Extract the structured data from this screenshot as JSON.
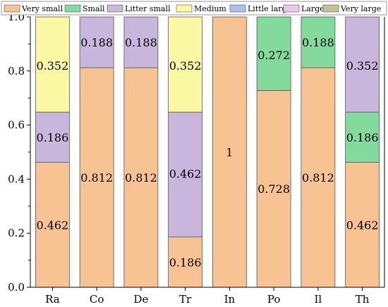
{
  "chart_data": {
    "type": "bar",
    "stacked": true,
    "categories": [
      "Ra",
      "Co",
      "De",
      "Tr",
      "In",
      "Po",
      "Il",
      "Th"
    ],
    "series": [
      {
        "name": "Very small",
        "color": "#f8c392",
        "values": [
          0.462,
          0.812,
          0.812,
          0.186,
          1.0,
          0.728,
          0.812,
          0.462
        ]
      },
      {
        "name": "Small",
        "color": "#84d99c",
        "values": [
          0,
          0,
          0,
          0,
          0,
          0.272,
          0.188,
          0.186
        ]
      },
      {
        "name": "Litter small",
        "color": "#c8b6dd",
        "values": [
          0.186,
          0.188,
          0.188,
          0.462,
          0,
          0,
          0,
          0.352
        ]
      },
      {
        "name": "Medium",
        "color": "#fbf8a4",
        "values": [
          0.352,
          0,
          0,
          0.352,
          0,
          0,
          0,
          0
        ]
      },
      {
        "name": "Little large",
        "color": "#aebde9",
        "values": [
          0,
          0,
          0,
          0,
          0,
          0,
          0,
          0
        ]
      },
      {
        "name": "Large",
        "color": "#ecc9ec",
        "values": [
          0,
          0,
          0,
          0,
          0,
          0,
          0,
          0
        ]
      },
      {
        "name": "Very large",
        "color": "#c4c294",
        "values": [
          0,
          0,
          0,
          0,
          0,
          0,
          0,
          0
        ]
      }
    ],
    "data_labels": [
      {
        "category": "Ra",
        "text": "0.352",
        "y": 0.82
      },
      {
        "category": "Ra",
        "text": "0.186",
        "y": 0.555
      },
      {
        "category": "Ra",
        "text": "0.462",
        "y": 0.231
      },
      {
        "category": "Co",
        "text": "0.188",
        "y": 0.906
      },
      {
        "category": "Co",
        "text": "0.812",
        "y": 0.406
      },
      {
        "category": "De",
        "text": "0.188",
        "y": 0.906
      },
      {
        "category": "De",
        "text": "0.812",
        "y": 0.406
      },
      {
        "category": "Tr",
        "text": "0.352",
        "y": 0.82
      },
      {
        "category": "Tr",
        "text": "0.462",
        "y": 0.42
      },
      {
        "category": "Tr",
        "text": "0.186",
        "y": 0.093
      },
      {
        "category": "In",
        "text": "1",
        "y": 0.5
      },
      {
        "category": "Po",
        "text": "0.272",
        "y": 0.86
      },
      {
        "category": "Po",
        "text": "0.728",
        "y": 0.364
      },
      {
        "category": "Il",
        "text": "0.188",
        "y": 0.906
      },
      {
        "category": "Il",
        "text": "0.812",
        "y": 0.406
      },
      {
        "category": "Th",
        "text": "0.352",
        "y": 0.82
      },
      {
        "category": "Th",
        "text": "0.186",
        "y": 0.555
      },
      {
        "category": "Th",
        "text": "0.462",
        "y": 0.231
      }
    ],
    "yticks": [
      "0.0",
      "0.2",
      "0.4",
      "0.6",
      "0.8",
      "1.0"
    ],
    "ylim": [
      0,
      1
    ],
    "legend_position": "top",
    "grid": false
  }
}
